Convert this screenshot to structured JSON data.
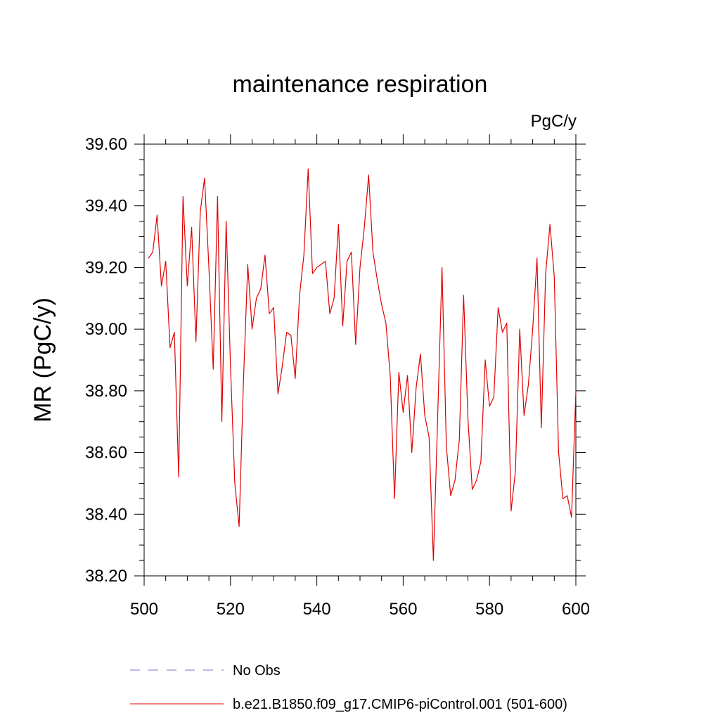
{
  "chart_data": {
    "type": "line",
    "title": "maintenance respiration",
    "units_label": "PgC/y",
    "ylabel": "MR  (PgC/y)",
    "xlabel": "",
    "xlim": [
      500,
      600
    ],
    "ylim": [
      38.2,
      39.6
    ],
    "xticks": [
      500,
      520,
      540,
      560,
      580,
      600
    ],
    "yticks": [
      "38.20",
      "38.40",
      "38.60",
      "38.80",
      "39.00",
      "39.20",
      "39.40",
      "39.60"
    ],
    "series": [
      {
        "name": "b.e21.B1850.f09_g17.CMIP6-piControl.001 (501-600)",
        "color": "#e00000",
        "style": "solid",
        "x": [
          501,
          502,
          503,
          504,
          505,
          506,
          507,
          508,
          509,
          510,
          511,
          512,
          513,
          514,
          515,
          516,
          517,
          518,
          519,
          520,
          521,
          522,
          523,
          524,
          525,
          526,
          527,
          528,
          529,
          530,
          531,
          532,
          533,
          534,
          535,
          536,
          537,
          538,
          539,
          540,
          541,
          542,
          543,
          544,
          545,
          546,
          547,
          548,
          549,
          550,
          551,
          552,
          553,
          554,
          555,
          556,
          557,
          558,
          559,
          560,
          561,
          562,
          563,
          564,
          565,
          566,
          567,
          568,
          569,
          570,
          571,
          572,
          573,
          574,
          575,
          576,
          577,
          578,
          579,
          580,
          581,
          582,
          583,
          584,
          585,
          586,
          587,
          588,
          589,
          590,
          591,
          592,
          593,
          594,
          595,
          596,
          597,
          598,
          599,
          600
        ],
        "values": [
          39.23,
          39.25,
          39.37,
          39.14,
          39.22,
          38.94,
          38.99,
          38.52,
          39.43,
          39.14,
          39.33,
          38.96,
          39.38,
          39.49,
          39.2,
          38.87,
          39.43,
          38.7,
          39.35,
          38.88,
          38.5,
          38.36,
          38.83,
          39.21,
          39.0,
          39.1,
          39.13,
          39.24,
          39.05,
          39.07,
          38.79,
          38.88,
          38.99,
          38.98,
          38.84,
          39.11,
          39.24,
          39.52,
          39.18,
          39.2,
          39.21,
          39.22,
          39.05,
          39.1,
          39.34,
          39.01,
          39.22,
          39.25,
          38.95,
          39.2,
          39.33,
          39.5,
          39.25,
          39.16,
          39.08,
          39.02,
          38.85,
          38.45,
          38.86,
          38.73,
          38.85,
          38.6,
          38.81,
          38.92,
          38.72,
          38.65,
          38.25,
          38.72,
          39.2,
          38.62,
          38.46,
          38.51,
          38.64,
          39.11,
          38.71,
          38.48,
          38.51,
          38.57,
          38.9,
          38.75,
          38.78,
          39.07,
          38.99,
          39.02,
          38.41,
          38.54,
          39.0,
          38.72,
          38.82,
          39.0,
          39.23,
          38.68,
          39.18,
          39.34,
          39.17,
          38.6,
          38.45,
          38.46,
          38.39,
          38.8
        ]
      },
      {
        "name": "No Obs",
        "color": "#7b6fd0",
        "style": "dashed",
        "x": [],
        "values": []
      }
    ],
    "legend_position": "bottom"
  }
}
